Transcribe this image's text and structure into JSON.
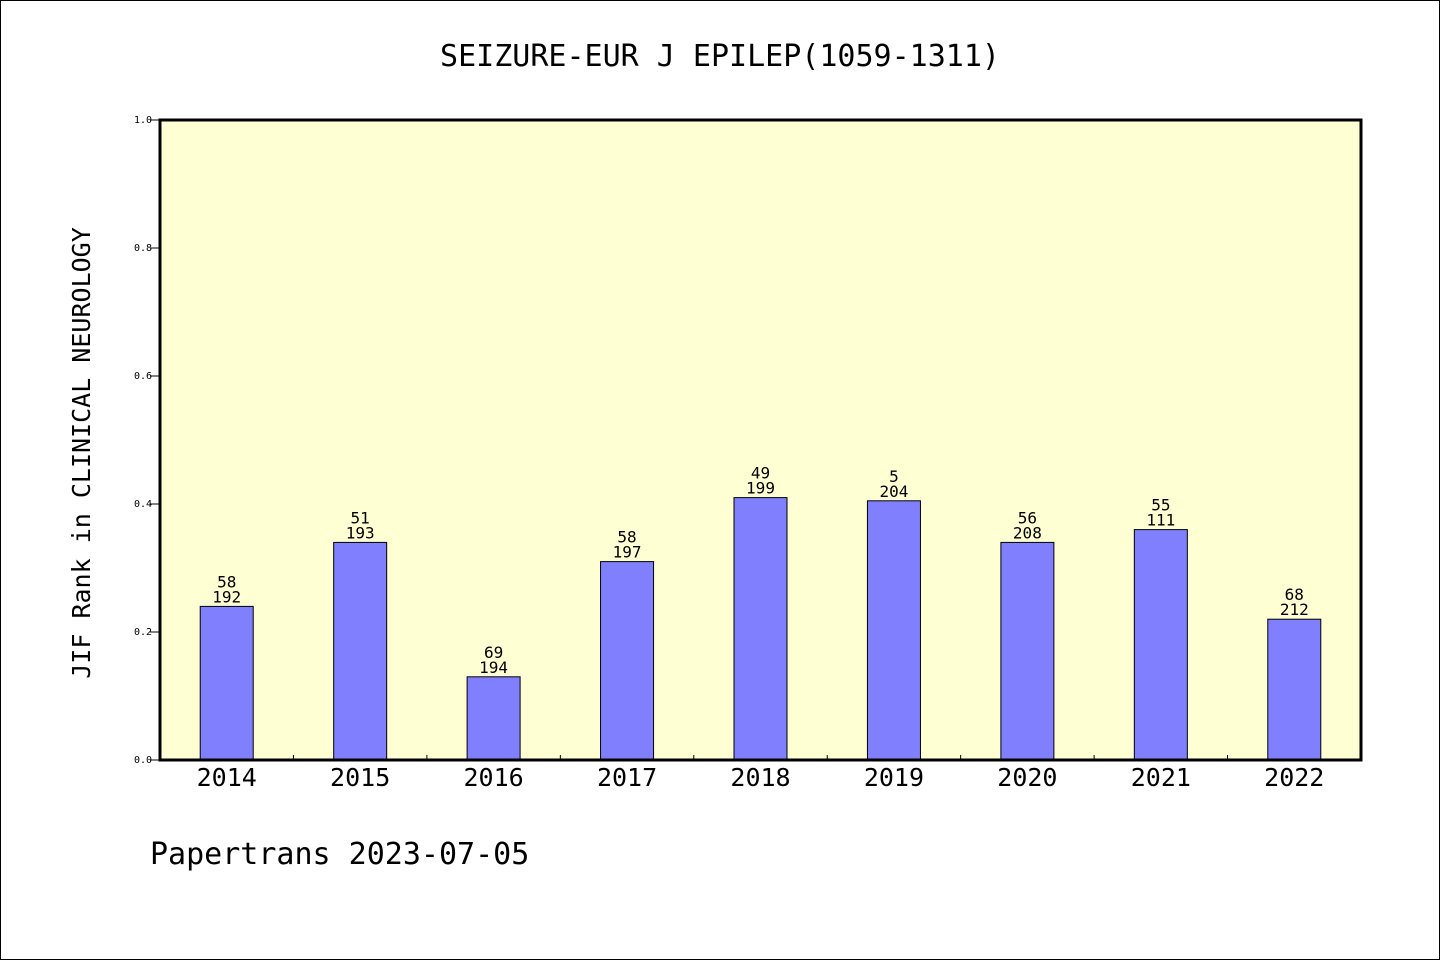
{
  "chart_data": {
    "type": "bar",
    "title": "SEIZURE-EUR J EPILEP(1059-1311)",
    "ylabel": "JIF Rank in CLINICAL NEUROLOGY",
    "xlabel": "",
    "ylim": [
      0,
      1.0
    ],
    "yticks": [
      "0.0",
      "0.2",
      "0.4",
      "0.6",
      "0.8",
      "1.0"
    ],
    "categories": [
      "2014",
      "2015",
      "2016",
      "2017",
      "2018",
      "2019",
      "2020",
      "2021",
      "2022"
    ],
    "values": [
      0.24,
      0.34,
      0.13,
      0.31,
      0.41,
      0.405,
      0.34,
      0.36,
      0.22
    ],
    "rank": [
      "58",
      "51",
      "69",
      "58",
      "49",
      "5",
      "56",
      "55",
      "68"
    ],
    "total": [
      "192",
      "193",
      "194",
      "197",
      "199",
      "204",
      "208",
      "111",
      "212"
    ],
    "colors": {
      "bar": "#8080ff",
      "plot_bg": "#ffffd4",
      "axis": "#000000"
    },
    "grid": false
  },
  "footer": "Papertrans 2023-07-05"
}
